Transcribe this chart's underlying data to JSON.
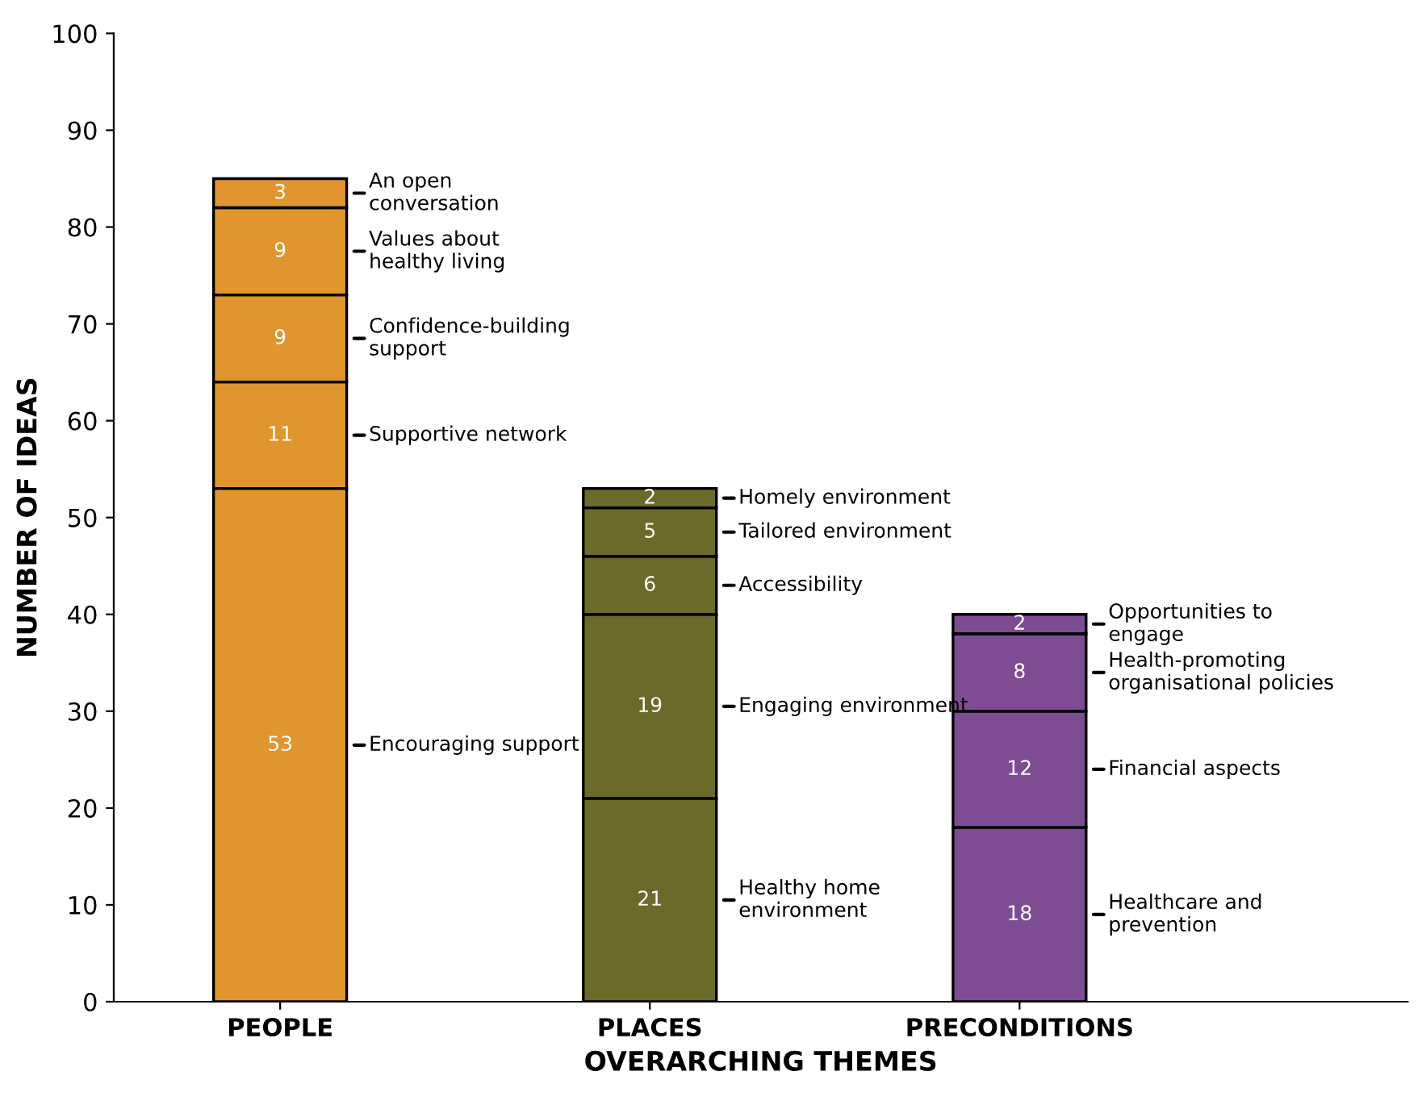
{
  "chart_data": {
    "type": "bar",
    "stacked": true,
    "xlabel": "OVERARCHING THEMES",
    "ylabel": "NUMBER OF IDEAS",
    "categories": [
      "PEOPLE",
      "PLACES",
      "PRECONDITIONS"
    ],
    "series": [
      {
        "colors": [
          "#e0952f",
          "#6b6a2b",
          "#7e4c93"
        ],
        "values": [
          53,
          21,
          18
        ]
      },
      {
        "colors": [
          "#e0952f",
          "#6b6a2b",
          "#7e4c93"
        ],
        "values": [
          11,
          19,
          12
        ]
      },
      {
        "colors": [
          "#e0952f",
          "#6b6a2b",
          "#7e4c93"
        ],
        "values": [
          9,
          6,
          8
        ]
      },
      {
        "colors": [
          "#e0952f",
          "#6b6a2b",
          "#7e4c93"
        ],
        "values": [
          9,
          5,
          2
        ]
      },
      {
        "colors": [
          "#e0952f",
          "#6b6a2b",
          "#7e4c93"
        ],
        "values": [
          3,
          2,
          null
        ]
      }
    ],
    "data_labels": true,
    "ylim": [
      0,
      100
    ],
    "yticks": [
      0,
      10,
      20,
      30,
      40,
      50,
      60,
      70,
      80,
      90,
      100
    ],
    "annotations": [
      "An open\nconversation",
      "Values about\nhealthy living",
      "Confidence-building\nsupport",
      "Supportive network",
      "Encouraging support",
      "Homely environment",
      "Tailored environment",
      "Accessibility",
      "Engaging environment",
      "Healthy home\nenvironment",
      "Opportunities to\nengage",
      "Health-promoting\norganisational policies",
      "Financial aspects",
      "Healthcare and\nprevention"
    ]
  }
}
